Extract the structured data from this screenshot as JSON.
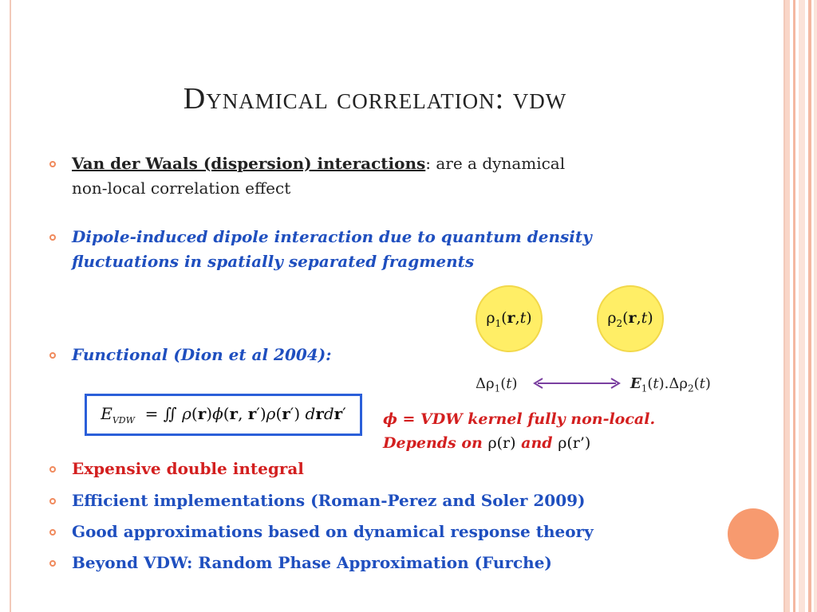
{
  "title": "Dynamical correlation: vdw",
  "bullets": {
    "b1_bold": "Van der Waals (dispersion) interactions",
    "b1_rest": ": are a dynamical",
    "b1_line2": "non-local correlation effect",
    "b2_line1": "Dipole-induced dipole interaction due to quantum density",
    "b2_line2": "fluctuations in spatially separated fragments",
    "b3": "Functional (Dion et al 2004):",
    "b4": "Expensive double integral",
    "b5": "Efficient implementations (Roman-Perez and Soler 2009)",
    "b6": "Good approximations based on dynamical response theory",
    "b7": "Beyond VDW: Random Phase Approximation (Furche)"
  },
  "diagram": {
    "rho1_label": "ρ1(r,t)",
    "rho2_label": "ρ2(r,t)",
    "delta_left": "Δρ1(t)",
    "delta_right": "E1(t).Δρ2(t)"
  },
  "formula": "E_VDW = ∬ ρ(r)ϕ(r,r′)ρ(r′) drdr′",
  "note": {
    "line1": "ϕ = VDW kernel fully non-local.",
    "line2_a": "Depends on",
    "line2_b": "ρ(r)",
    "line2_c": "and",
    "line2_d": "ρ(r’)"
  },
  "colors": {
    "accent": "#f08a5d",
    "blue": "#1f4fbf",
    "red": "#d31f1f",
    "circle_fill": "#ffee66",
    "arrow": "#7a3fa0"
  }
}
